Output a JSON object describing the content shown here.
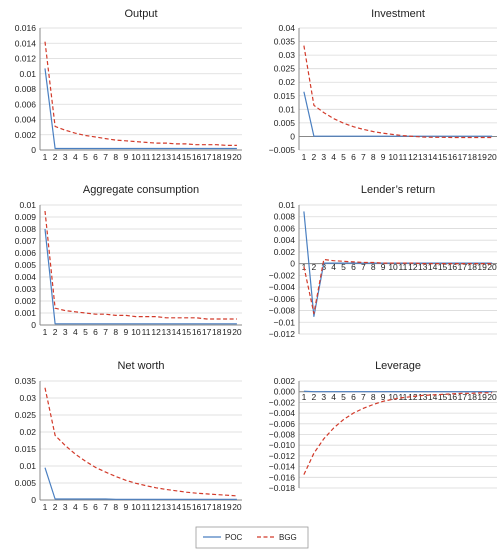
{
  "colors": {
    "poc": "#4a7fc1",
    "bgg": "#d23a2a",
    "axis": "#888888",
    "grid": "#d9d9d9"
  },
  "legend": {
    "items": [
      {
        "key": "poc",
        "label": "POC"
      },
      {
        "key": "bgg",
        "label": "BGG"
      }
    ],
    "placement": "bottom-center"
  },
  "chart_data": [
    {
      "type": "line",
      "title": "Output",
      "x": [
        1,
        2,
        3,
        4,
        5,
        6,
        7,
        8,
        9,
        10,
        11,
        12,
        13,
        14,
        15,
        16,
        17,
        18,
        19,
        20
      ],
      "ylim": [
        0,
        0.016
      ],
      "yticks": [
        "0.016",
        "0.014",
        "0.012",
        "0.01",
        "0.008",
        "0.006",
        "0.004",
        "0.002",
        "0"
      ],
      "series": [
        {
          "name": "POC",
          "values": [
            0.0107,
            0.0002,
            0.0002,
            0.0002,
            0.0002,
            0.0002,
            0.0002,
            0.0002,
            0.0002,
            0.0002,
            0.0002,
            0.0002,
            0.0002,
            0.0002,
            0.0002,
            0.0002,
            0.0002,
            0.0002,
            0.0002,
            0.0002
          ]
        },
        {
          "name": "BGG",
          "values": [
            0.0142,
            0.0031,
            0.0026,
            0.0022,
            0.0019,
            0.0017,
            0.0015,
            0.0013,
            0.0012,
            0.0011,
            0.001,
            0.0009,
            0.0009,
            0.0008,
            0.0008,
            0.0007,
            0.0007,
            0.0007,
            0.0006,
            0.0006
          ]
        }
      ]
    },
    {
      "type": "line",
      "title": "Investment",
      "x": [
        1,
        2,
        3,
        4,
        5,
        6,
        7,
        8,
        9,
        10,
        11,
        12,
        13,
        14,
        15,
        16,
        17,
        18,
        19,
        20
      ],
      "ylim": [
        -0.005,
        0.04
      ],
      "yticks": [
        "0.04",
        "0.035",
        "0.03",
        "0.025",
        "0.02",
        "0.015",
        "0.01",
        "0.005",
        "0",
        "−0.005"
      ],
      "series": [
        {
          "name": "POC",
          "values": [
            0.0165,
            0.0001,
            0.0001,
            0.0001,
            0.0001,
            0.0001,
            0.0001,
            0.0001,
            0.0001,
            0.0001,
            0.0001,
            0.0001,
            0.0001,
            0.0001,
            0.0001,
            0.0001,
            0.0001,
            0.0001,
            0.0001,
            0.0001
          ]
        },
        {
          "name": "BGG",
          "values": [
            0.0335,
            0.0115,
            0.0088,
            0.0066,
            0.0049,
            0.0036,
            0.0026,
            0.0018,
            0.0012,
            0.0007,
            0.0003,
            0.0,
            -0.0002,
            -0.0003,
            -0.0003,
            -0.0004,
            -0.0004,
            -0.0004,
            -0.0004,
            -0.0004
          ]
        }
      ]
    },
    {
      "type": "line",
      "title": "Aggregate consumption",
      "x": [
        1,
        2,
        3,
        4,
        5,
        6,
        7,
        8,
        9,
        10,
        11,
        12,
        13,
        14,
        15,
        16,
        17,
        18,
        19,
        20
      ],
      "ylim": [
        0,
        0.01
      ],
      "yticks": [
        "0.01",
        "0.009",
        "0.008",
        "0.007",
        "0.006",
        "0.005",
        "0.004",
        "0.003",
        "0.002",
        "0.001",
        "0"
      ],
      "series": [
        {
          "name": "POC",
          "values": [
            0.008,
            0.0001,
            0.0001,
            0.0001,
            0.0001,
            0.0001,
            0.0001,
            0.0001,
            0.0001,
            0.0001,
            0.0001,
            0.0001,
            0.0001,
            0.0001,
            0.0001,
            0.0001,
            0.0001,
            0.0001,
            0.0001,
            0.0001
          ]
        },
        {
          "name": "BGG",
          "values": [
            0.0095,
            0.0014,
            0.0012,
            0.0011,
            0.001,
            0.0009,
            0.0009,
            0.0008,
            0.0008,
            0.0007,
            0.0007,
            0.0007,
            0.0006,
            0.0006,
            0.0006,
            0.0006,
            0.0005,
            0.0005,
            0.0005,
            0.0005
          ]
        }
      ]
    },
    {
      "type": "line",
      "title": "Lender’s return",
      "x": [
        1,
        2,
        3,
        4,
        5,
        6,
        7,
        8,
        9,
        10,
        11,
        12,
        13,
        14,
        15,
        16,
        17,
        18,
        19,
        20
      ],
      "ylim": [
        -0.012,
        0.01
      ],
      "yticks": [
        "0.01",
        "0.008",
        "0.006",
        "0.004",
        "0.002",
        "0",
        "−0.002",
        "−0.004",
        "−0.006",
        "−0.008",
        "−0.01",
        "−0.012"
      ],
      "series": [
        {
          "name": "POC",
          "values": [
            0.0089,
            -0.009,
            0.0001,
            0.0001,
            0.0001,
            0.0001,
            0.0001,
            0.0001,
            0.0001,
            0.0001,
            0.0001,
            0.0001,
            0.0001,
            0.0001,
            0.0001,
            0.0001,
            0.0001,
            0.0001,
            0.0001,
            0.0001
          ]
        },
        {
          "name": "BGG",
          "values": [
            -0.0005,
            -0.0085,
            0.0007,
            0.0005,
            0.0004,
            0.0003,
            0.0002,
            0.0002,
            0.0001,
            0.0001,
            0.0001,
            0.0001,
            0.0,
            0.0,
            0.0,
            0.0,
            0.0,
            0.0,
            0.0,
            0.0
          ]
        }
      ]
    },
    {
      "type": "line",
      "title": "Net worth",
      "x": [
        1,
        2,
        3,
        4,
        5,
        6,
        7,
        8,
        9,
        10,
        11,
        12,
        13,
        14,
        15,
        16,
        17,
        18,
        19,
        20
      ],
      "ylim": [
        0,
        0.035
      ],
      "yticks": [
        "0.035",
        "0.03",
        "0.025",
        "0.02",
        "0.015",
        "0.01",
        "0.005",
        "0"
      ],
      "series": [
        {
          "name": "POC",
          "values": [
            0.0095,
            0.0003,
            0.0003,
            0.0003,
            0.0003,
            0.0003,
            0.0003,
            0.0002,
            0.0002,
            0.0002,
            0.0002,
            0.0002,
            0.0002,
            0.0002,
            0.0002,
            0.0002,
            0.0002,
            0.0002,
            0.0002,
            0.0002
          ]
        },
        {
          "name": "BGG",
          "values": [
            0.033,
            0.019,
            0.016,
            0.0135,
            0.0114,
            0.0096,
            0.0082,
            0.0069,
            0.0058,
            0.0049,
            0.0042,
            0.0036,
            0.0031,
            0.0027,
            0.0023,
            0.002,
            0.0018,
            0.0016,
            0.0014,
            0.0012
          ]
        }
      ]
    },
    {
      "type": "line",
      "title": "Leverage",
      "x": [
        1,
        2,
        3,
        4,
        5,
        6,
        7,
        8,
        9,
        10,
        11,
        12,
        13,
        14,
        15,
        16,
        17,
        18,
        19,
        20
      ],
      "ylim": [
        -0.018,
        0.002
      ],
      "yticks": [
        "0.002",
        "0.000",
        "−0.002",
        "−0.004",
        "−0.006",
        "−0.008",
        "−0.010",
        "−0.012",
        "−0.014",
        "−0.016",
        "−0.018"
      ],
      "series": [
        {
          "name": "POC",
          "values": [
            0.0001,
            0.0,
            0.0,
            0.0,
            0.0,
            0.0,
            0.0,
            0.0,
            0.0,
            0.0,
            0.0,
            0.0,
            0.0,
            0.0,
            0.0,
            0.0,
            0.0,
            0.0,
            0.0,
            0.0
          ]
        },
        {
          "name": "BGG",
          "values": [
            -0.0155,
            -0.0115,
            -0.0088,
            -0.0068,
            -0.0052,
            -0.004,
            -0.0031,
            -0.0024,
            -0.0018,
            -0.0014,
            -0.0011,
            -0.0009,
            -0.0007,
            -0.0006,
            -0.0005,
            -0.0004,
            -0.0003,
            -0.0003,
            -0.0002,
            -0.0002
          ]
        }
      ]
    }
  ]
}
